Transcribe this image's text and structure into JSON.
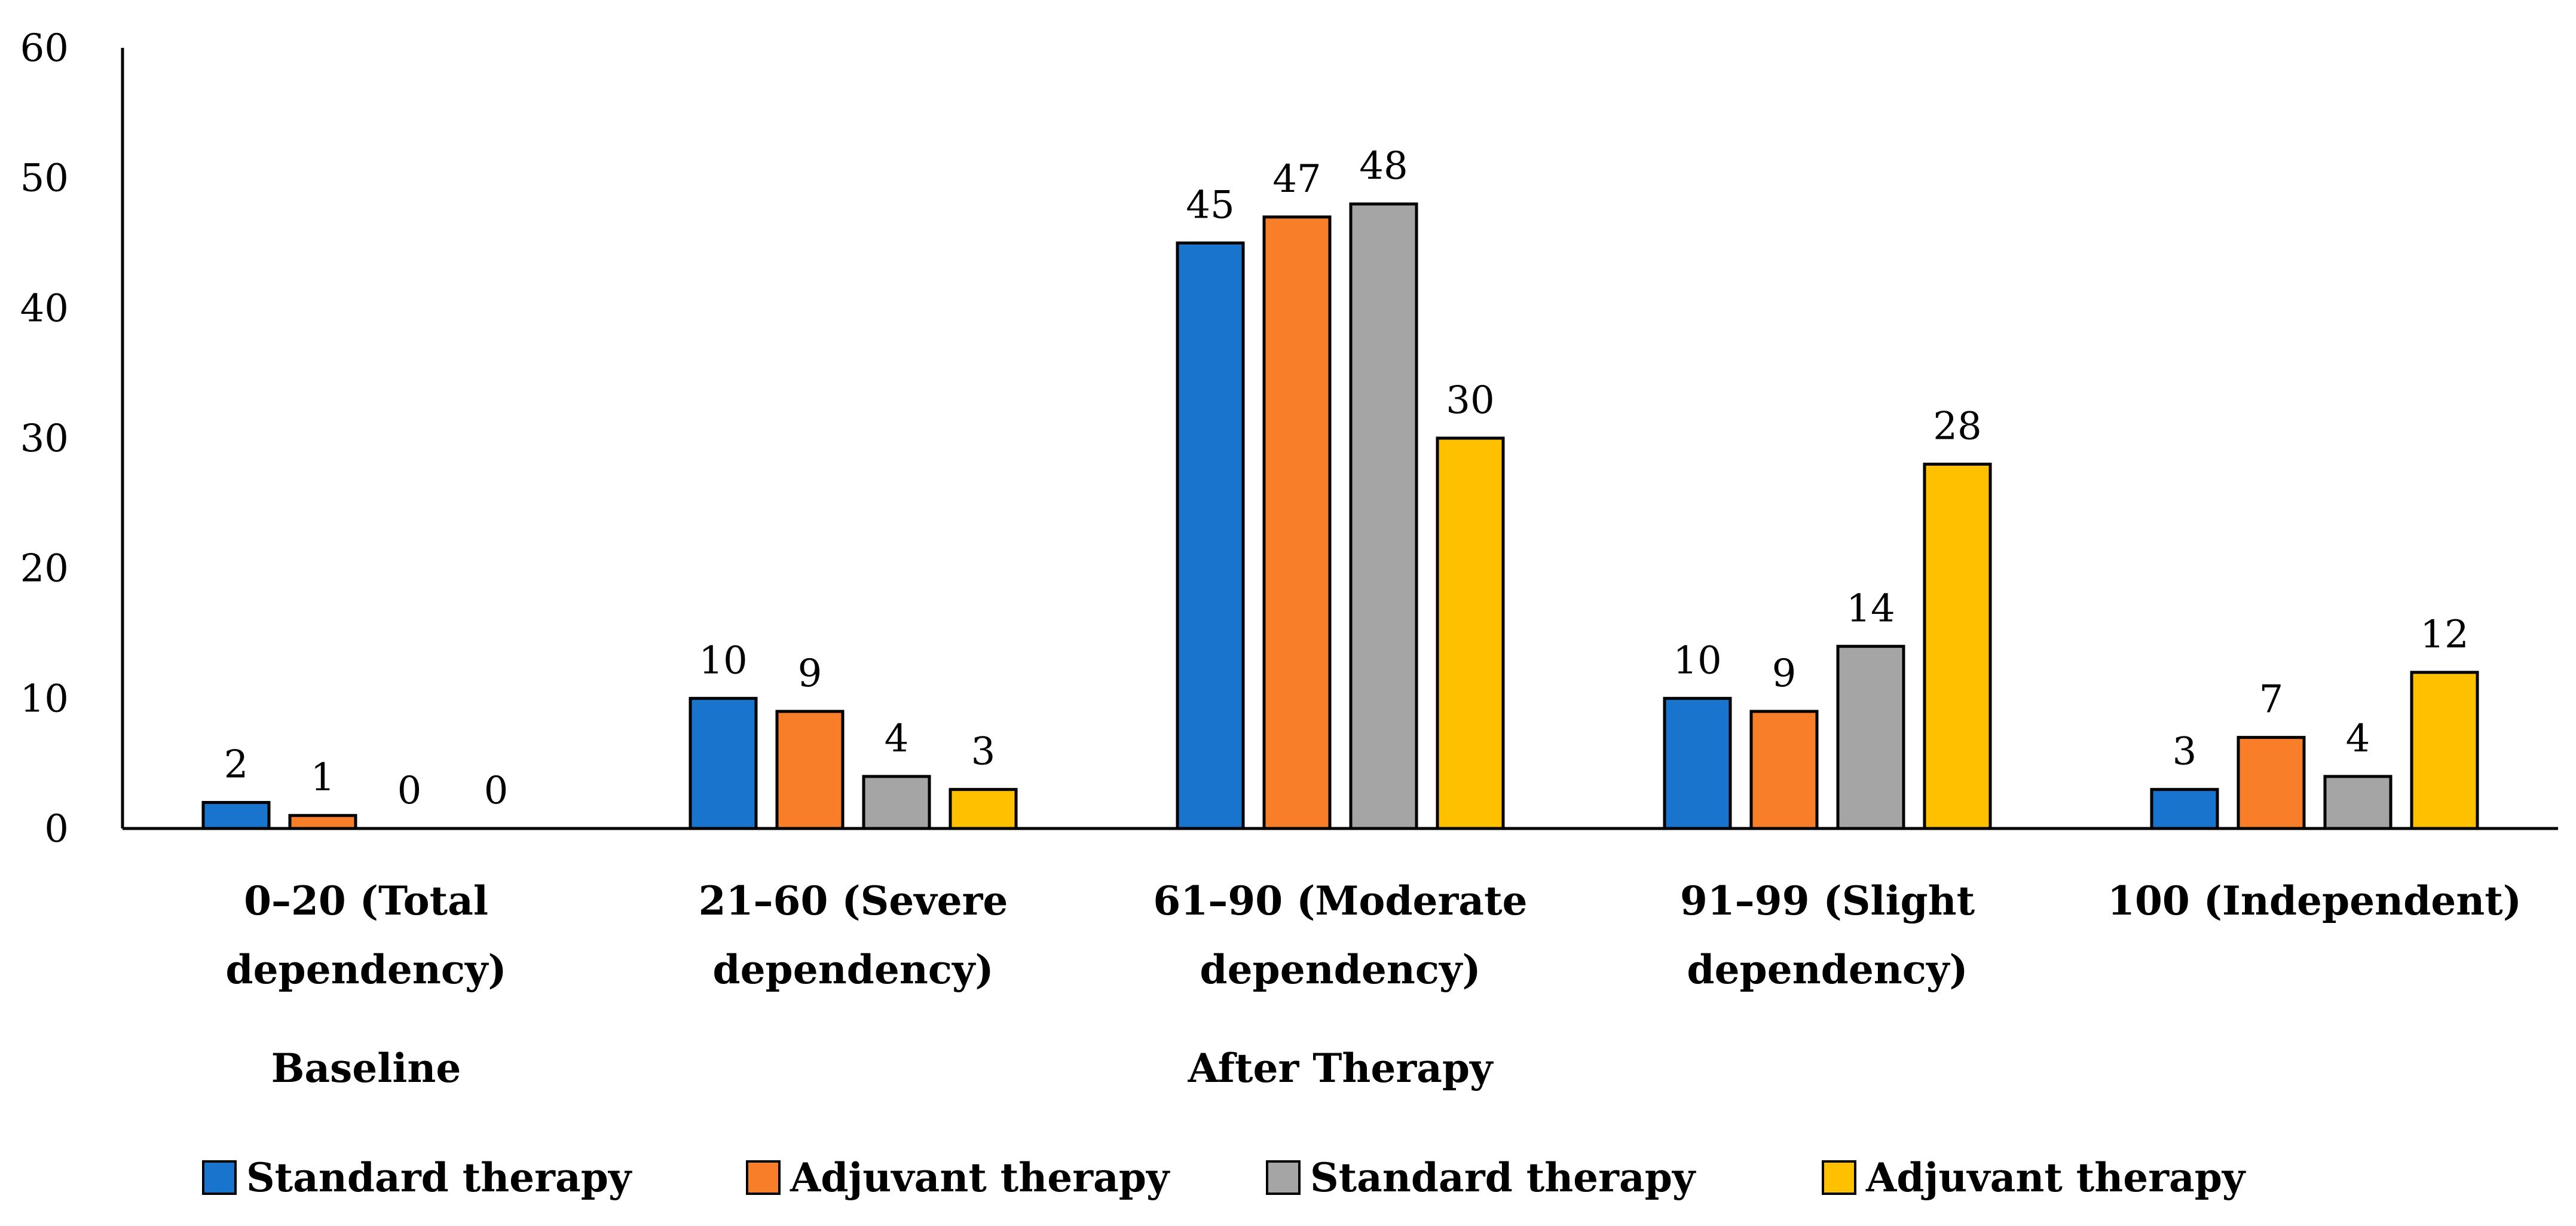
{
  "chart_data": {
    "type": "bar",
    "title": "",
    "xlabel": "",
    "ylabel": "",
    "ylim": [
      0,
      60
    ],
    "yticks": [
      0,
      10,
      20,
      30,
      40,
      50,
      60
    ],
    "grid": false,
    "legend_position": "bottom",
    "categories": [
      [
        "0–20 (Total",
        "dependency)"
      ],
      [
        "21–60 (Severe",
        "dependency)"
      ],
      [
        "61–90 (Moderate",
        "dependency)"
      ],
      [
        "91–99 (Slight",
        "dependency)"
      ],
      [
        "100 (Independent)"
      ]
    ],
    "groups": [
      {
        "label": "Baseline",
        "span": [
          0,
          1
        ]
      },
      {
        "label": "After Therapy",
        "span": [
          1,
          4
        ]
      }
    ],
    "series": [
      {
        "name": "Standard therapy",
        "color": "#1874CD",
        "values": [
          2,
          10,
          45,
          10,
          3
        ]
      },
      {
        "name": "Adjuvant therapy",
        "color": "#F87E2A",
        "values": [
          1,
          9,
          47,
          9,
          7
        ]
      },
      {
        "name": "Standard therapy",
        "color": "#A5A5A5",
        "values": [
          0,
          4,
          48,
          14,
          4
        ]
      },
      {
        "name": "Adjuvant therapy",
        "color": "#FFC000",
        "values": [
          0,
          3,
          30,
          28,
          12
        ]
      }
    ]
  }
}
